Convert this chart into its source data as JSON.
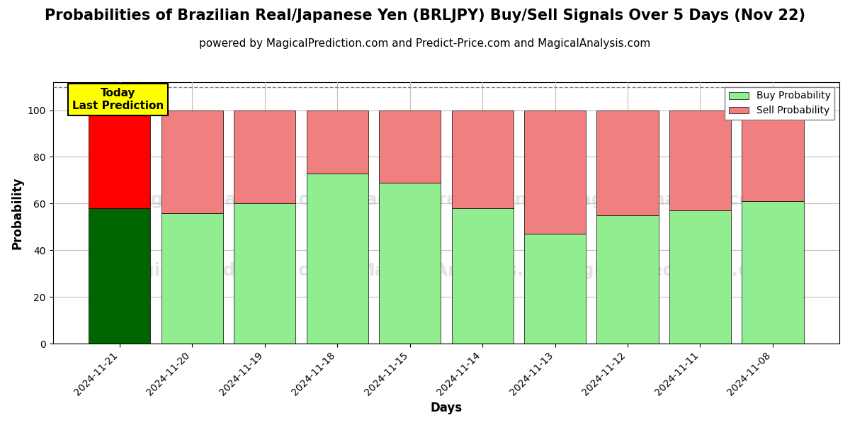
{
  "title": "Probabilities of Brazilian Real/Japanese Yen (BRLJPY) Buy/Sell Signals Over 5 Days (Nov 22)",
  "subtitle": "powered by MagicalPrediction.com and Predict-Price.com and MagicalAnalysis.com",
  "xlabel": "Days",
  "ylabel": "Probability",
  "dates": [
    "2024-11-21",
    "2024-11-20",
    "2024-11-19",
    "2024-11-18",
    "2024-11-15",
    "2024-11-14",
    "2024-11-13",
    "2024-11-12",
    "2024-11-11",
    "2024-11-08"
  ],
  "buy_probs": [
    58,
    56,
    60,
    73,
    69,
    58,
    47,
    55,
    57,
    61
  ],
  "sell_probs": [
    42,
    44,
    40,
    27,
    31,
    42,
    53,
    45,
    43,
    39
  ],
  "today_buy_color": "#006400",
  "today_sell_color": "#ff0000",
  "buy_color": "#90ee90",
  "sell_color": "#f08080",
  "today_annotation": "Today\nLast Prediction",
  "annotation_bg_color": "#ffff00",
  "ylim": [
    0,
    112
  ],
  "yticks": [
    0,
    20,
    40,
    60,
    80,
    100
  ],
  "dashed_line_y": 110,
  "legend_buy_label": "Buy Probability",
  "legend_sell_label": "Sell Probability",
  "bg_color": "#ffffff",
  "grid_color": "#c0c0c0",
  "title_fontsize": 15,
  "subtitle_fontsize": 11,
  "label_fontsize": 12,
  "tick_fontsize": 10,
  "bar_width": 0.85
}
